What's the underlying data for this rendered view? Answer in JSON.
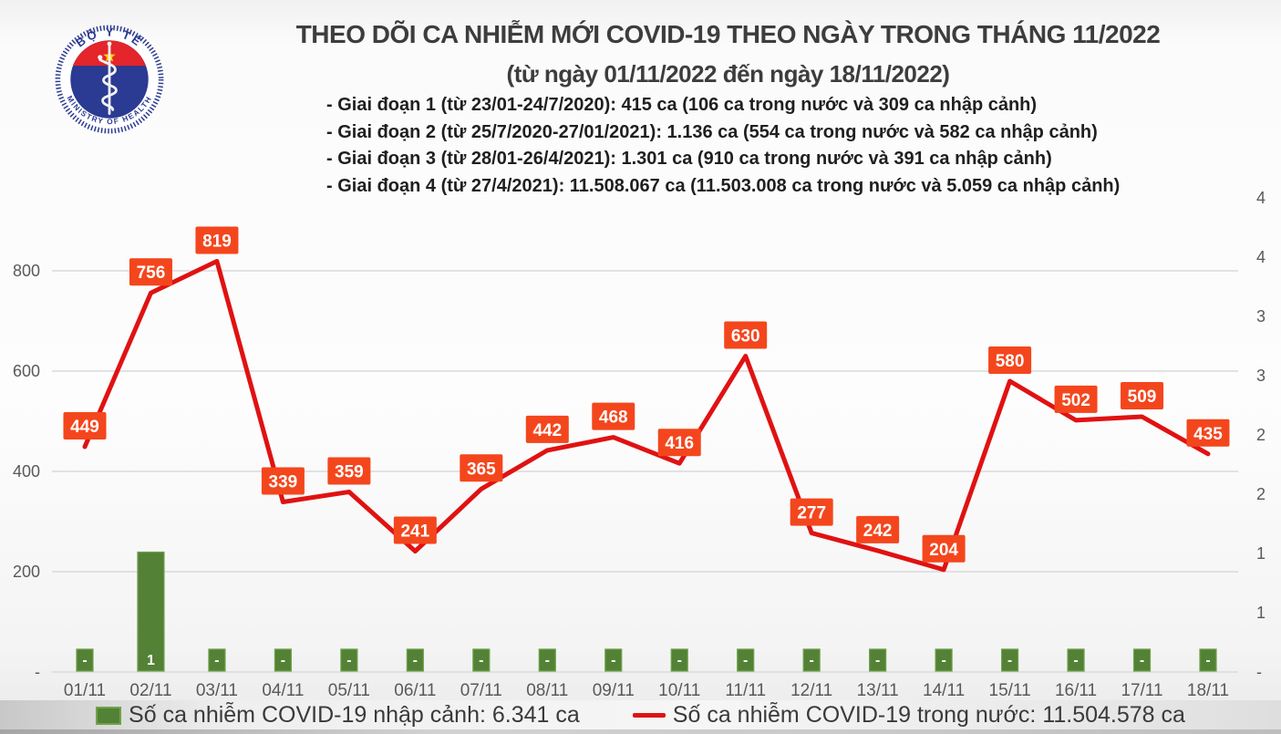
{
  "logo": {
    "top_text": "BỘ Y TẾ",
    "bottom_text": "MINISTRY OF HEALTH"
  },
  "header": {
    "title": "THEO DÕI CA NHIỄM MỚI COVID-19 THEO NGÀY TRONG THÁNG 11/2022",
    "subtitle": "(từ ngày 01/11/2022 đến ngày 18/11/2022)",
    "stages": [
      "- Giai đoạn 1 (từ 23/01-24/7/2020): 415 ca (106 ca trong nước và 309 ca nhập cảnh)",
      "- Giai đoạn 2 (từ 25/7/2020-27/01/2021): 1.136 ca (554 ca trong nước và 582 ca nhập cảnh)",
      "- Giai đoạn 3 (từ 28/01-26/4/2021): 1.301 ca (910 ca trong nước và 391 ca nhập cảnh)",
      "- Giai đoạn 4 (từ 27/4/2021): 11.508.067 ca (11.503.008 ca trong nước và 5.059 ca nhập cảnh)"
    ]
  },
  "chart_data": {
    "type": "line+bar",
    "title": "THEO DÕI CA NHIỄM MỚI COVID-19 THEO NGÀY TRONG THÁNG 11/2022",
    "categories": [
      "01/11",
      "02/11",
      "03/11",
      "04/11",
      "05/11",
      "06/11",
      "07/11",
      "08/11",
      "09/11",
      "10/11",
      "11/11",
      "12/11",
      "13/11",
      "14/11",
      "15/11",
      "16/11",
      "17/11",
      "18/11"
    ],
    "series": [
      {
        "name": "Số ca nhiễm COVID-19 trong nước",
        "type": "line",
        "axis": "left",
        "color": "#e01212",
        "values": [
          449,
          756,
          819,
          339,
          359,
          241,
          365,
          442,
          468,
          416,
          630,
          277,
          242,
          204,
          580,
          502,
          509,
          435
        ]
      },
      {
        "name": "Số ca nhiễm COVID-19 nhập cảnh",
        "type": "bar",
        "axis": "right",
        "color": "#538135",
        "values": [
          0,
          1,
          0,
          0,
          0,
          0,
          0,
          0,
          0,
          0,
          0,
          0,
          0,
          0,
          0,
          0,
          0,
          0
        ],
        "labels": [
          "-",
          "1",
          "-",
          "-",
          "-",
          "-",
          "-",
          "-",
          "-",
          "-",
          "-",
          "-",
          "-",
          "-",
          "-",
          "-",
          "-",
          "-"
        ]
      }
    ],
    "left_axis": {
      "ticks": [
        {
          "value": 800,
          "label": "800"
        },
        {
          "value": 600,
          "label": "600"
        },
        {
          "value": 400,
          "label": "400"
        },
        {
          "value": 200,
          "label": "200"
        },
        {
          "value": 0,
          "label": "-"
        }
      ]
    },
    "right_axis": {
      "range": [
        0,
        4
      ],
      "step": 0.5,
      "tick_labels": [
        "4",
        "4",
        "3",
        "3",
        "2",
        "2",
        "1",
        "1",
        "-"
      ]
    },
    "grid": true,
    "legend_position": "bottom"
  },
  "legend": {
    "bar_item": "Số ca nhiễm COVID-19 nhập cảnh: 6.341 ca",
    "line_item": "Số ca nhiễm COVID-19 trong nước: 11.504.578 ca"
  },
  "colors": {
    "line": "#e01212",
    "label_box": "#f4461d",
    "bar": "#538135",
    "bar_border": "#6fa24b",
    "grid": "#dadada",
    "axis_text": "#595959",
    "title_text": "#3d3d3d"
  }
}
